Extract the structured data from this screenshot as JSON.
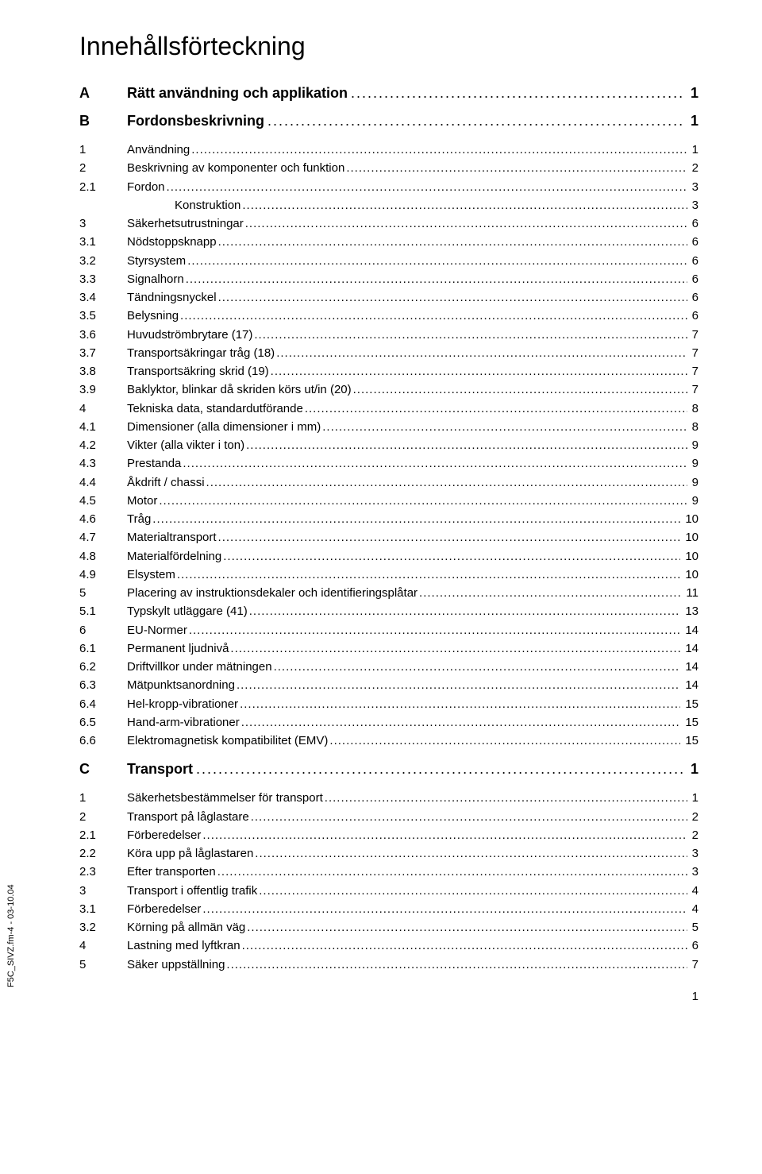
{
  "title": "Innehållsförteckning",
  "side_label": "F5C_SIVZ.fm-4 - 03-10.04",
  "page_number": "1",
  "sections": [
    {
      "id": "A",
      "title": "Rätt användning och applikation",
      "page": "1",
      "entries": []
    },
    {
      "id": "B",
      "title": "Fordonsbeskrivning",
      "page": "1",
      "entries": [
        {
          "id": "1",
          "title": "Användning",
          "page": "1",
          "indent": 0
        },
        {
          "id": "2",
          "title": "Beskrivning av komponenter och funktion",
          "page": "2",
          "indent": 0
        },
        {
          "id": "2.1",
          "title": "Fordon",
          "page": "3",
          "indent": 0
        },
        {
          "id": "",
          "title": "Konstruktion",
          "page": "3",
          "indent": 1
        },
        {
          "id": "3",
          "title": "Säkerhetsutrustningar",
          "page": "6",
          "indent": 0
        },
        {
          "id": "3.1",
          "title": "Nödstoppsknapp",
          "page": "6",
          "indent": 0
        },
        {
          "id": "3.2",
          "title": "Styrsystem",
          "page": "6",
          "indent": 0
        },
        {
          "id": "3.3",
          "title": "Signalhorn",
          "page": "6",
          "indent": 0
        },
        {
          "id": "3.4",
          "title": "Tändningsnyckel",
          "page": "6",
          "indent": 0
        },
        {
          "id": "3.5",
          "title": "Belysning",
          "page": "6",
          "indent": 0
        },
        {
          "id": "3.6",
          "title": "Huvudströmbrytare (17)",
          "page": "7",
          "indent": 0
        },
        {
          "id": "3.7",
          "title": "Transportsäkringar tråg (18)",
          "page": "7",
          "indent": 0
        },
        {
          "id": "3.8",
          "title": "Transportsäkring skrid (19)",
          "page": "7",
          "indent": 0
        },
        {
          "id": "3.9",
          "title": "Baklyktor, blinkar då skriden körs ut/in (20)",
          "page": "7",
          "indent": 0
        },
        {
          "id": "4",
          "title": "Tekniska data, standardutförande",
          "page": "8",
          "indent": 0
        },
        {
          "id": "4.1",
          "title": "Dimensioner (alla dimensioner i mm)",
          "page": "8",
          "indent": 0
        },
        {
          "id": "4.2",
          "title": "Vikter (alla vikter i ton)",
          "page": "9",
          "indent": 0
        },
        {
          "id": "4.3",
          "title": "Prestanda",
          "page": "9",
          "indent": 0
        },
        {
          "id": "4.4",
          "title": "Åkdrift / chassi",
          "page": "9",
          "indent": 0
        },
        {
          "id": "4.5",
          "title": "Motor",
          "page": "9",
          "indent": 0
        },
        {
          "id": "4.6",
          "title": "Tråg",
          "page": "10",
          "indent": 0
        },
        {
          "id": "4.7",
          "title": "Materialtransport",
          "page": "10",
          "indent": 0
        },
        {
          "id": "4.8",
          "title": "Materialfördelning",
          "page": "10",
          "indent": 0
        },
        {
          "id": "4.9",
          "title": "Elsystem",
          "page": "10",
          "indent": 0
        },
        {
          "id": "5",
          "title": "Placering av instruktionsdekaler och identifieringsplåtar",
          "page": "11",
          "indent": 0
        },
        {
          "id": "5.1",
          "title": "Typskylt utläggare (41)",
          "page": "13",
          "indent": 0
        },
        {
          "id": "6",
          "title": "EU-Normer",
          "page": "14",
          "indent": 0
        },
        {
          "id": "6.1",
          "title": "Permanent ljudnivå",
          "page": "14",
          "indent": 0
        },
        {
          "id": "6.2",
          "title": "Driftvillkor under mätningen",
          "page": "14",
          "indent": 0
        },
        {
          "id": "6.3",
          "title": "Mätpunktsanordning",
          "page": "14",
          "indent": 0
        },
        {
          "id": "6.4",
          "title": "Hel-kropp-vibrationer",
          "page": "15",
          "indent": 0
        },
        {
          "id": "6.5",
          "title": "Hand-arm-vibrationer",
          "page": "15",
          "indent": 0
        },
        {
          "id": "6.6",
          "title": "Elektromagnetisk kompatibilitet (EMV)",
          "page": "15",
          "indent": 0
        }
      ]
    },
    {
      "id": "C",
      "title": "Transport",
      "page": "1",
      "entries": [
        {
          "id": "1",
          "title": "Säkerhetsbestämmelser för transport",
          "page": "1",
          "indent": 0
        },
        {
          "id": "2",
          "title": "Transport på låglastare",
          "page": "2",
          "indent": 0
        },
        {
          "id": "2.1",
          "title": "Förberedelser",
          "page": "2",
          "indent": 0
        },
        {
          "id": "2.2",
          "title": "Köra upp på låglastaren",
          "page": "3",
          "indent": 0
        },
        {
          "id": "2.3",
          "title": "Efter transporten",
          "page": "3",
          "indent": 0
        },
        {
          "id": "3",
          "title": "Transport i offentlig trafik",
          "page": "4",
          "indent": 0
        },
        {
          "id": "3.1",
          "title": "Förberedelser",
          "page": "4",
          "indent": 0
        },
        {
          "id": "3.2",
          "title": "Körning på allmän väg",
          "page": "5",
          "indent": 0
        },
        {
          "id": "4",
          "title": "Lastning med lyftkran",
          "page": "6",
          "indent": 0
        },
        {
          "id": "5",
          "title": "Säker uppställning",
          "page": "7",
          "indent": 0
        }
      ]
    }
  ]
}
